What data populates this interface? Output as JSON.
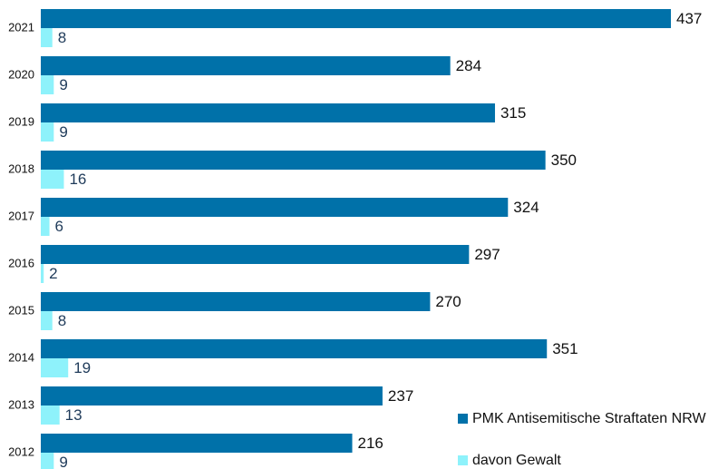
{
  "chart_data": {
    "type": "bar",
    "orientation": "horizontal",
    "categories": [
      "2021",
      "2020",
      "2019",
      "2018",
      "2017",
      "2016",
      "2015",
      "2014",
      "2013",
      "2012"
    ],
    "series": [
      {
        "name": "PMK Antisemitische Straftaten NRW",
        "color": "#0071a9",
        "values": [
          437,
          284,
          315,
          350,
          324,
          297,
          270,
          351,
          237,
          216
        ]
      },
      {
        "name": "davon Gewalt",
        "color": "#8ef2fb",
        "values": [
          8,
          9,
          9,
          16,
          6,
          2,
          8,
          19,
          13,
          9
        ]
      }
    ]
  }
}
